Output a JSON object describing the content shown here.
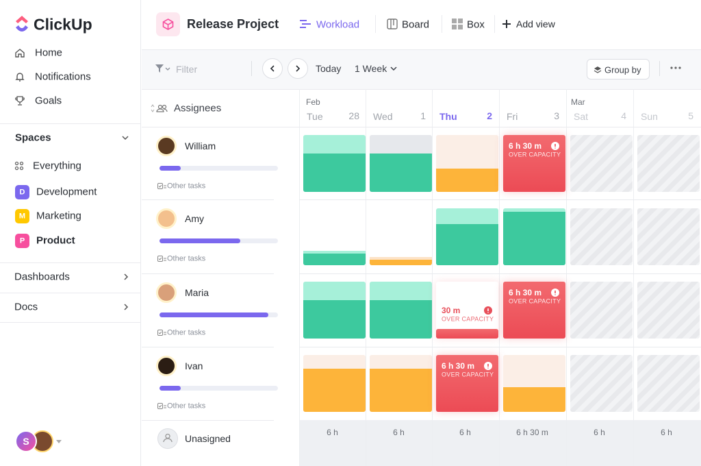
{
  "sidebar": {
    "logo": "ClickUp",
    "nav": [
      "Home",
      "Notifications",
      "Goals"
    ],
    "spaces_title": "Spaces",
    "spaces": [
      {
        "label": "Everything"
      },
      {
        "badge": "D",
        "label": "Development"
      },
      {
        "badge": "M",
        "label": "Marketing"
      },
      {
        "badge": "P",
        "label": "Product"
      }
    ],
    "sections": [
      "Dashboards",
      "Docs"
    ],
    "user_initial": "S"
  },
  "header": {
    "project": "Release Project",
    "views": [
      "Workload",
      "Board",
      "Box"
    ],
    "add_view": "Add view"
  },
  "toolbar": {
    "filter": "Filter",
    "today": "Today",
    "range": "1 Week",
    "group_by": "Group by"
  },
  "grid": {
    "column_title": "Assignees",
    "months": [
      "Feb",
      "Mar"
    ],
    "days": [
      {
        "name": "Tue",
        "date": 28
      },
      {
        "name": "Wed",
        "date": 1
      },
      {
        "name": "Thu",
        "date": 2
      },
      {
        "name": "Fri",
        "date": 3
      },
      {
        "name": "Sat",
        "date": 4
      },
      {
        "name": "Sun",
        "date": 5
      }
    ],
    "rows": [
      {
        "name": "William",
        "other": "Other tasks",
        "cells": [
          null,
          null,
          null,
          {
            "time": "6 h 30 m",
            "note": "OVER CAPACITY"
          },
          null,
          null
        ]
      },
      {
        "name": "Amy",
        "other": "Other tasks",
        "cells": [
          null,
          null,
          null,
          null,
          null,
          null
        ]
      },
      {
        "name": "Maria",
        "other": "Other tasks",
        "cells": [
          null,
          null,
          {
            "time": "30 m",
            "note": "OVER CAPACITY"
          },
          {
            "time": "6 h 30 m",
            "note": "OVER CAPACITY"
          },
          null,
          null
        ]
      },
      {
        "name": "Ivan",
        "other": "Other tasks",
        "cells": [
          null,
          null,
          {
            "time": "6 h 30 m",
            "note": "OVER CAPACITY"
          },
          null,
          null,
          null
        ]
      }
    ],
    "unassigned": "Unasigned",
    "totals": [
      "6 h",
      "6 h",
      "6 h",
      "6 h 30 m",
      "6 h",
      "6 h"
    ]
  }
}
